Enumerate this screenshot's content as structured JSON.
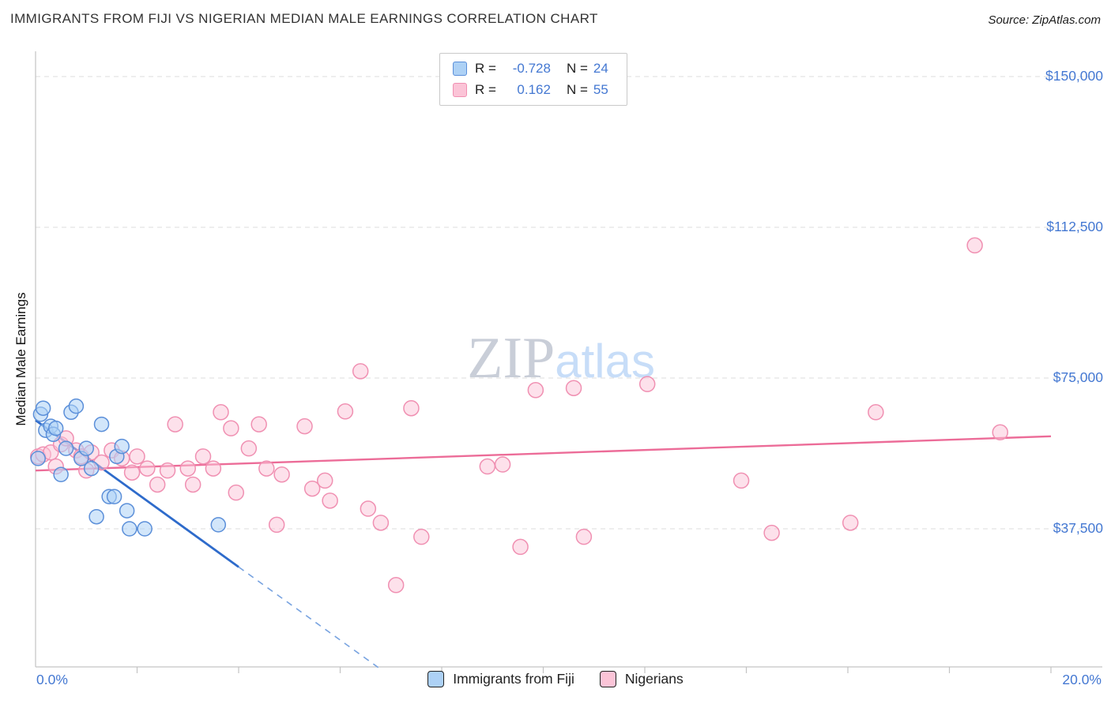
{
  "header": {
    "title": "IMMIGRANTS FROM FIJI VS NIGERIAN MEDIAN MALE EARNINGS CORRELATION CHART",
    "source": "Source: ZipAtlas.com"
  },
  "watermark": {
    "part1": "ZIP",
    "part2": "atlas"
  },
  "correlation_box": {
    "rows": [
      {
        "series": "Immigrants from Fiji",
        "r_label": "R =",
        "r_value": "-0.728",
        "n_label": "N =",
        "n_value": "24"
      },
      {
        "series": "Nigerians",
        "r_label": "R =",
        "r_value": "0.162",
        "n_label": "N =",
        "n_value": "55"
      }
    ]
  },
  "axes": {
    "y_title": "Median Male Earnings",
    "y_ticks": [
      "$150,000",
      "$112,500",
      "$75,000",
      "$37,500"
    ],
    "y_tick_values": [
      150000,
      112500,
      75000,
      37500
    ],
    "x_min_label": "0.0%",
    "x_max_label": "20.0%",
    "x_range": [
      0,
      20
    ]
  },
  "legend": [
    {
      "label": "Immigrants from Fiji"
    },
    {
      "label": "Nigerians"
    }
  ],
  "colors": {
    "accent_blue_text": "#4478d2",
    "fiji_fill": "#ADD1F5",
    "fiji_stroke": "#5B8FD9",
    "fiji_line": "#2E6BCB",
    "fiji_line_light": "#78a3e0",
    "nigerian_fill": "#FBC4D7",
    "nigerian_stroke": "#F090B2",
    "nigerian_line": "#EC6C98",
    "gridline": "#dcdcdc",
    "axis": "#c3c3c3"
  },
  "chart_data": {
    "type": "scatter",
    "title": "IMMIGRANTS FROM FIJI VS NIGERIAN MEDIAN MALE EARNINGS CORRELATION CHART",
    "xlabel": "",
    "ylabel": "Median Male Earnings",
    "xlim": [
      0,
      20
    ],
    "ylim": [
      0,
      156000
    ],
    "x_unit": "percent",
    "x_tick_labels": [
      "0.0%",
      "20.0%"
    ],
    "y_tick_labels": [
      "$150,000",
      "$112,500",
      "$75,000",
      "$37,500"
    ],
    "grid": "horizontal-dashed",
    "legend_position": "bottom-center",
    "series": [
      {
        "name": "Immigrants from Fiji",
        "r": -0.728,
        "n": 24,
        "points": [
          [
            0.05,
            55000
          ],
          [
            0.1,
            66000
          ],
          [
            0.15,
            67500
          ],
          [
            0.2,
            62000
          ],
          [
            0.3,
            63000
          ],
          [
            0.35,
            61000
          ],
          [
            0.4,
            62500
          ],
          [
            0.5,
            51000
          ],
          [
            0.6,
            57500
          ],
          [
            0.7,
            66500
          ],
          [
            0.8,
            68000
          ],
          [
            0.9,
            55000
          ],
          [
            1.0,
            57500
          ],
          [
            1.1,
            52500
          ],
          [
            1.2,
            40500
          ],
          [
            1.3,
            63500
          ],
          [
            1.45,
            45500
          ],
          [
            1.55,
            45500
          ],
          [
            1.6,
            55500
          ],
          [
            1.7,
            58000
          ],
          [
            1.8,
            42000
          ],
          [
            1.85,
            37500
          ],
          [
            2.15,
            37500
          ],
          [
            3.6,
            38500
          ]
        ],
        "trend": {
          "solid": [
            [
              0,
              64500
            ],
            [
              4.0,
              28000
            ]
          ],
          "dashed": [
            [
              4.0,
              28000
            ],
            [
              6.75,
              3000
            ]
          ]
        }
      },
      {
        "name": "Nigerians",
        "r": 0.162,
        "n": 55,
        "points": [
          [
            0.05,
            55500
          ],
          [
            0.15,
            56000
          ],
          [
            0.3,
            56500
          ],
          [
            0.4,
            53000
          ],
          [
            0.5,
            58500
          ],
          [
            0.6,
            60000
          ],
          [
            0.8,
            57000
          ],
          [
            0.9,
            55500
          ],
          [
            1.0,
            52000
          ],
          [
            1.1,
            56500
          ],
          [
            1.3,
            54000
          ],
          [
            1.5,
            57000
          ],
          [
            1.7,
            55000
          ],
          [
            1.9,
            51500
          ],
          [
            2.0,
            55500
          ],
          [
            2.2,
            52500
          ],
          [
            2.4,
            48500
          ],
          [
            2.6,
            52000
          ],
          [
            2.75,
            63500
          ],
          [
            3.0,
            52500
          ],
          [
            3.1,
            48500
          ],
          [
            3.3,
            55500
          ],
          [
            3.5,
            52500
          ],
          [
            3.65,
            66500
          ],
          [
            3.85,
            62500
          ],
          [
            3.95,
            46500
          ],
          [
            4.2,
            57500
          ],
          [
            4.4,
            63500
          ],
          [
            4.55,
            52500
          ],
          [
            4.75,
            38500
          ],
          [
            4.85,
            51000
          ],
          [
            5.3,
            63000
          ],
          [
            5.45,
            47500
          ],
          [
            5.7,
            49500
          ],
          [
            5.8,
            44500
          ],
          [
            6.1,
            66700
          ],
          [
            6.4,
            76700
          ],
          [
            6.55,
            42500
          ],
          [
            6.8,
            39000
          ],
          [
            7.1,
            23500
          ],
          [
            7.4,
            67500
          ],
          [
            7.6,
            35500
          ],
          [
            8.9,
            53000
          ],
          [
            9.2,
            53500
          ],
          [
            9.55,
            33000
          ],
          [
            9.85,
            72000
          ],
          [
            10.6,
            72500
          ],
          [
            10.8,
            35500
          ],
          [
            12.05,
            73500
          ],
          [
            13.9,
            49500
          ],
          [
            14.5,
            36500
          ],
          [
            16.05,
            39000
          ],
          [
            16.55,
            66500
          ],
          [
            18.5,
            108000
          ],
          [
            19.0,
            61500
          ]
        ],
        "trend": {
          "solid": [
            [
              0,
              52000
            ],
            [
              20,
              60500
            ]
          ]
        }
      }
    ]
  }
}
